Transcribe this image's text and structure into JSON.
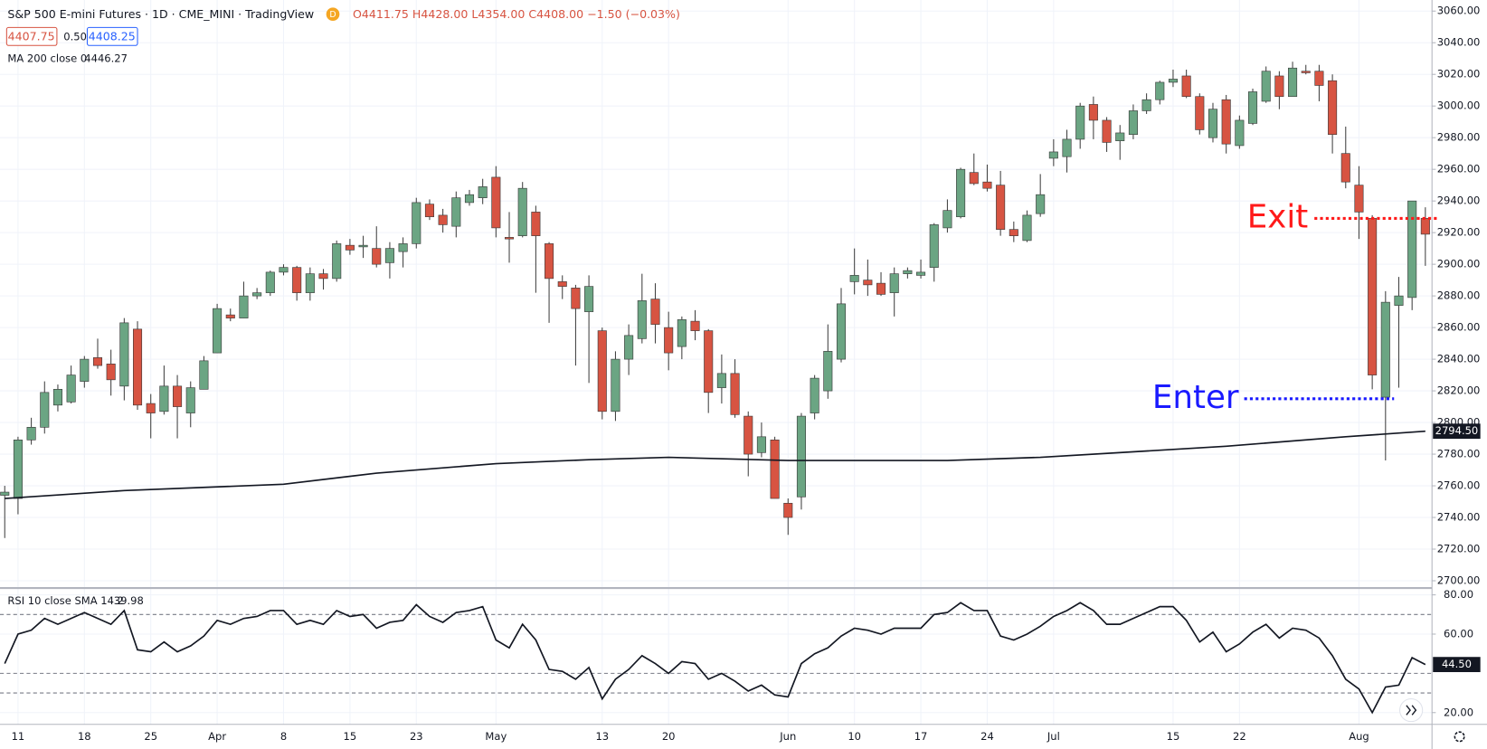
{
  "header": {
    "symbol": "S&P 500 E-mini Futures · 1D · CME_MINI · TradingView",
    "badge": "D",
    "ohlc": "O4411.75 H4428.00 L4354.00 C4408.00 −1.50 (−0.03%)",
    "bid": "4407.75",
    "spread": "0.50",
    "ask": "4408.25",
    "ma_label": "MA 200 close 0",
    "ma_value": "4446.27",
    "rsi_label": "RSI 10 close SMA 14 2",
    "rsi_value": "39.98"
  },
  "chart_data": [
    {
      "type": "candlestick",
      "up_color": "#6ba583",
      "down_color": "#d75442",
      "wick_color": "#404040",
      "grid": true,
      "categories": [
        null,
        "11",
        null,
        null,
        null,
        null,
        "18",
        null,
        null,
        null,
        null,
        "25",
        null,
        null,
        null,
        null,
        "Apr",
        null,
        null,
        null,
        null,
        "8",
        null,
        null,
        null,
        null,
        "15",
        null,
        null,
        null,
        null,
        "23",
        null,
        null,
        null,
        null,
        null,
        "May",
        null,
        null,
        null,
        null,
        null,
        null,
        null,
        "13",
        null,
        null,
        null,
        null,
        "20",
        null,
        null,
        null,
        null,
        null,
        null,
        null,
        null,
        "Jun",
        null,
        null,
        null,
        null,
        "10",
        null,
        null,
        null,
        null,
        "17",
        null,
        null,
        null,
        null,
        "24",
        null,
        null,
        null,
        null,
        "Jul",
        null,
        null,
        null,
        null,
        null,
        null,
        null,
        null,
        "15",
        null,
        null,
        null,
        null,
        "22",
        null,
        null,
        null,
        null,
        null,
        null,
        null,
        null,
        "Aug",
        null,
        null,
        null,
        null,
        null
      ],
      "open": [
        2754,
        2752,
        2789,
        2797,
        2811,
        2813,
        2826,
        2841,
        2837,
        2823,
        2859,
        2812,
        2807,
        2823,
        2806,
        2821,
        2844,
        2868,
        2866,
        2880,
        2882,
        2895,
        2898,
        2882,
        2894,
        2891,
        2912,
        2911,
        2910,
        2901,
        2908,
        2913,
        2938,
        2931,
        2924,
        2939,
        2942,
        2955,
        2917,
        2918,
        2933,
        2913,
        2889,
        2885,
        2870,
        2858,
        2807,
        2840,
        2853,
        2878,
        2860,
        2848,
        2864,
        2858,
        2822,
        2831,
        2804,
        2781,
        2789,
        2749,
        2753,
        2806,
        2820,
        2840,
        2889,
        2890,
        2888,
        2882,
        2894,
        2893,
        2898,
        2923,
        2930,
        2958,
        2952,
        2950,
        2922,
        2915,
        2932,
        2967,
        2968,
        2979,
        3001,
        2991,
        2978,
        2982,
        2997,
        3004,
        3015,
        3019,
        3006,
        2980,
        3004,
        2975,
        2989,
        3003,
        3019,
        3006,
        3022,
        3022,
        3016,
        2970,
        2950,
        2929,
        2816,
        2874,
        2879,
        2929
      ],
      "high": [
        2760,
        2791,
        2803,
        2826,
        2824,
        2836,
        2842,
        2853,
        2846,
        2866,
        2864,
        2818,
        2836,
        2830,
        2826,
        2842,
        2875,
        2872,
        2889,
        2885,
        2896,
        2900,
        2899,
        2898,
        2897,
        2915,
        2916,
        2918,
        2924,
        2914,
        2917,
        2942,
        2941,
        2935,
        2946,
        2947,
        2954,
        2962,
        2933,
        2952,
        2937,
        2914,
        2893,
        2887,
        2893,
        2860,
        2845,
        2862,
        2894,
        2888,
        2870,
        2867,
        2871,
        2859,
        2843,
        2840,
        2807,
        2800,
        2791,
        2752,
        2806,
        2830,
        2862,
        2885,
        2910,
        2903,
        2895,
        2898,
        2898,
        2903,
        2926,
        2941,
        2961,
        2970,
        2963,
        2959,
        2927,
        2934,
        2957,
        2979,
        2985,
        3002,
        3006,
        2993,
        2988,
        3001,
        3008,
        3016,
        3023,
        3023,
        3008,
        3002,
        3007,
        2994,
        3011,
        3025,
        3022,
        3028,
        3026,
        3026,
        3020,
        2987,
        2962,
        2931,
        2883,
        2892,
        2940,
        2936
      ],
      "low": [
        2727,
        2742,
        2786,
        2793,
        2807,
        2812,
        2822,
        2834,
        2817,
        2814,
        2808,
        2790,
        2805,
        2790,
        2797,
        2821,
        2844,
        2864,
        2866,
        2878,
        2880,
        2893,
        2877,
        2877,
        2884,
        2889,
        2906,
        2904,
        2898,
        2891,
        2898,
        2910,
        2928,
        2920,
        2917,
        2937,
        2938,
        2917,
        2901,
        2917,
        2882,
        2863,
        2878,
        2836,
        2825,
        2802,
        2801,
        2830,
        2850,
        2850,
        2833,
        2840,
        2852,
        2806,
        2812,
        2803,
        2766,
        2778,
        2752,
        2729,
        2745,
        2802,
        2815,
        2838,
        2881,
        2880,
        2880,
        2867,
        2891,
        2891,
        2889,
        2920,
        2929,
        2950,
        2946,
        2918,
        2914,
        2914,
        2930,
        2962,
        2958,
        2973,
        2979,
        2971,
        2966,
        2979,
        2995,
        3001,
        3012,
        3005,
        2982,
        2977,
        2970,
        2973,
        2988,
        3002,
        2998,
        3006,
        3020,
        3003,
        2970,
        2948,
        2916,
        2821,
        2776,
        2822,
        2871,
        2899
      ],
      "close": [
        2756,
        2789,
        2797,
        2819,
        2821,
        2830,
        2840,
        2836,
        2827,
        2863,
        2811,
        2806,
        2823,
        2810,
        2822,
        2839,
        2872,
        2866,
        2880,
        2882,
        2895,
        2898,
        2882,
        2894,
        2891,
        2913,
        2909,
        2912,
        2900,
        2910,
        2913,
        2939,
        2930,
        2925,
        2942,
        2944,
        2949,
        2923,
        2916,
        2948,
        2918,
        2891,
        2886,
        2872,
        2886,
        2807,
        2840,
        2855,
        2877,
        2862,
        2844,
        2865,
        2858,
        2819,
        2831,
        2805,
        2780,
        2791,
        2752,
        2740,
        2804,
        2828,
        2845,
        2875,
        2893,
        2887,
        2881,
        2894,
        2896,
        2895,
        2925,
        2934,
        2960,
        2951,
        2948,
        2922,
        2918,
        2931,
        2944,
        2971,
        2979,
        3000,
        2991,
        2977,
        2983,
        2997,
        3004,
        3015,
        3017,
        3006,
        2985,
        2998,
        2976,
        2991,
        3009,
        3022,
        3006,
        3024,
        3021,
        3013,
        2982,
        2952,
        2933,
        2830,
        2876,
        2880,
        2940,
        2919
      ],
      "ma": {
        "color": "#131722",
        "x": [
          0,
          9,
          21,
          28,
          37,
          44,
          50,
          59,
          71,
          78,
          92,
          101,
          107
        ],
        "values": [
          2752,
          2757,
          2761,
          2768,
          2774,
          2776.5,
          2778,
          2776,
          2776,
          2778,
          2785,
          2791,
          2794.5
        ],
        "value_labels": [
          null,
          null,
          null,
          null,
          null,
          null,
          null,
          null,
          null,
          null,
          null,
          null,
          "2794.50"
        ]
      },
      "ylim": [
        2696,
        3067
      ],
      "yticks": [
        {
          "value": 2700,
          "label": "2700.00"
        },
        {
          "value": 2720,
          "label": "2720.00"
        },
        {
          "value": 2740,
          "label": "2740.00"
        },
        {
          "value": 2760,
          "label": "2760.00"
        },
        {
          "value": 2780,
          "label": "2780.00"
        },
        {
          "value": 2800,
          "label": "2800.00"
        },
        {
          "value": 2820,
          "label": "2820.00"
        },
        {
          "value": 2840,
          "label": "2840.00"
        },
        {
          "value": 2860,
          "label": "2860.00"
        },
        {
          "value": 2880,
          "label": "2880.00"
        },
        {
          "value": 2900,
          "label": "2900.00"
        },
        {
          "value": 2920,
          "label": "2920.00"
        },
        {
          "value": 2940,
          "label": "2940.00"
        },
        {
          "value": 2960,
          "label": "2960.00"
        },
        {
          "value": 2980,
          "label": "2980.00"
        },
        {
          "value": 3000,
          "label": "3000.00"
        },
        {
          "value": 3020,
          "label": "3020.00"
        },
        {
          "value": 3040,
          "label": "3040.00"
        },
        {
          "value": 3060,
          "label": "3060.00"
        }
      ],
      "annotations": [
        {
          "text": "Exit",
          "value": 2929,
          "color": "#ff1a1a"
        },
        {
          "text": "Enter",
          "value": 2815,
          "color": "#1a1aff"
        }
      ]
    },
    {
      "type": "line",
      "color": "#131722",
      "hlines": [
        70,
        40,
        30
      ],
      "values": [
        45,
        60,
        62,
        68,
        65,
        68,
        71,
        68,
        65,
        72,
        52,
        51,
        56,
        51,
        54,
        59,
        67,
        65,
        68,
        69,
        72,
        72,
        65,
        67,
        65,
        72,
        69,
        70,
        63,
        66,
        67,
        75,
        69,
        66,
        71,
        72,
        74,
        57,
        53,
        65,
        57,
        42,
        41,
        37,
        43,
        27,
        37,
        42,
        49,
        45,
        40,
        46,
        45,
        37,
        40,
        36,
        31,
        34,
        29,
        28,
        45,
        50,
        53,
        59,
        63,
        62,
        60,
        63,
        63,
        63,
        70,
        71,
        76,
        72,
        72,
        59,
        57,
        60,
        64,
        69,
        72,
        76,
        72,
        65,
        65,
        68,
        71,
        74,
        74,
        67,
        56,
        61,
        51,
        55,
        61,
        65,
        58,
        63,
        62,
        58,
        49,
        37,
        32,
        20,
        33,
        34,
        48,
        44.5
      ],
      "value_labels": [
        null,
        null,
        null,
        null,
        null,
        null,
        null,
        null,
        null,
        null,
        null,
        null,
        null,
        null,
        null,
        null,
        null,
        null,
        null,
        null,
        null,
        null,
        null,
        null,
        null,
        null,
        null,
        null,
        null,
        null,
        null,
        null,
        null,
        null,
        null,
        null,
        null,
        null,
        null,
        null,
        null,
        null,
        null,
        null,
        null,
        null,
        null,
        null,
        null,
        null,
        null,
        null,
        null,
        null,
        null,
        null,
        null,
        null,
        null,
        null,
        null,
        null,
        null,
        null,
        null,
        null,
        null,
        null,
        null,
        null,
        null,
        null,
        null,
        null,
        null,
        null,
        null,
        null,
        null,
        null,
        null,
        null,
        null,
        null,
        null,
        null,
        null,
        null,
        null,
        null,
        null,
        null,
        null,
        null,
        null,
        null,
        null,
        null,
        null,
        null,
        null,
        null,
        null,
        null,
        null,
        null,
        null,
        "44.50"
      ],
      "ylim": [
        14,
        83
      ],
      "yticks": [
        {
          "value": 20,
          "label": "20.00"
        },
        {
          "value": 60,
          "label": "60.00"
        },
        {
          "value": 80,
          "label": "80.00"
        }
      ]
    }
  ]
}
